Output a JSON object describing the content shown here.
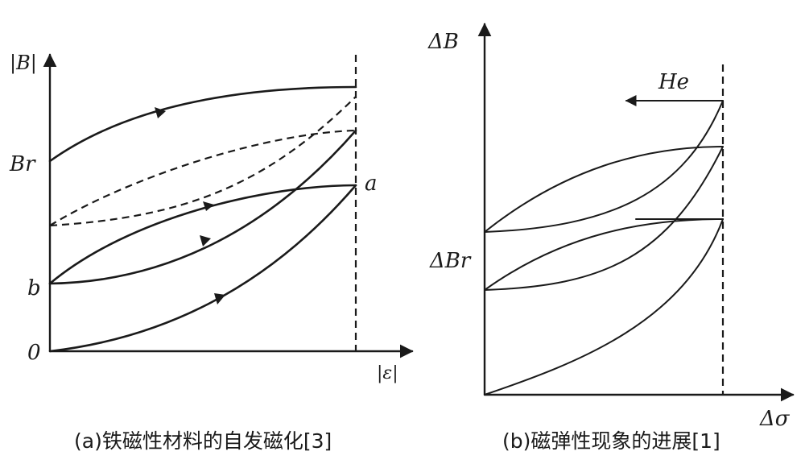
{
  "chart_data": [
    {
      "type": "line",
      "title": "",
      "caption": "(a)铁磁性材料的自发磁化[3]",
      "ylabel": "|B|",
      "xlabel": "|ε|",
      "tick_labels": [
        "0",
        "b",
        "Br",
        "a"
      ],
      "series": [
        {
          "style": "solid",
          "x": [
            0,
            0.25,
            0.5,
            0.75,
            1.0
          ],
          "y": [
            0.77,
            0.87,
            0.93,
            0.97,
            1.0
          ]
        },
        {
          "style": "solid",
          "x": [
            0,
            0.25,
            0.5,
            0.75,
            1.0
          ],
          "y": [
            0.0,
            0.04,
            0.16,
            0.38,
            0.69
          ]
        },
        {
          "style": "solid",
          "x": [
            0,
            0.25,
            0.5,
            0.75,
            1.0
          ],
          "y": [
            0.27,
            0.46,
            0.61,
            0.68,
            0.69
          ]
        },
        {
          "style": "solid",
          "x": [
            0,
            0.25,
            0.5,
            0.75,
            1.0
          ],
          "y": [
            0.27,
            0.32,
            0.44,
            0.62,
            0.84
          ]
        },
        {
          "style": "dashed",
          "x": [
            0,
            0.25,
            0.5,
            0.75,
            1.0
          ],
          "y": [
            0.51,
            0.67,
            0.76,
            0.82,
            0.84
          ]
        },
        {
          "style": "dashed",
          "x": [
            0,
            0.25,
            0.5,
            0.75,
            1.0
          ],
          "y": [
            0.51,
            0.53,
            0.64,
            0.77,
            0.98
          ]
        }
      ]
    },
    {
      "type": "line",
      "title": "",
      "caption": "(b)磁弹性现象的进展[1]",
      "ylabel": "ΔB",
      "xlabel": "Δσ",
      "tick_labels": [
        "ΔBr"
      ],
      "annotation": "He",
      "series": [
        {
          "style": "solid",
          "x": [
            0,
            0.25,
            0.5,
            0.75,
            1.0
          ],
          "y": [
            0.0,
            0.12,
            0.26,
            0.42,
            0.66
          ]
        },
        {
          "style": "solid",
          "x": [
            0,
            0.25,
            0.5,
            0.75,
            1.0
          ],
          "y": [
            0.42,
            0.57,
            0.66,
            0.71,
            0.72
          ]
        },
        {
          "style": "solid",
          "x": [
            0,
            0.25,
            0.5,
            0.75,
            1.0
          ],
          "y": [
            0.42,
            0.43,
            0.48,
            0.59,
            0.72
          ]
        },
        {
          "style": "solid",
          "x": [
            0,
            0.25,
            0.5,
            0.75,
            1.0
          ],
          "y": [
            0.66,
            0.78,
            0.86,
            0.92,
            0.93
          ]
        },
        {
          "style": "solid",
          "x": [
            0,
            0.25,
            0.5,
            0.75,
            1.0
          ],
          "y": [
            0.66,
            0.67,
            0.73,
            0.83,
            0.98
          ]
        }
      ]
    }
  ]
}
